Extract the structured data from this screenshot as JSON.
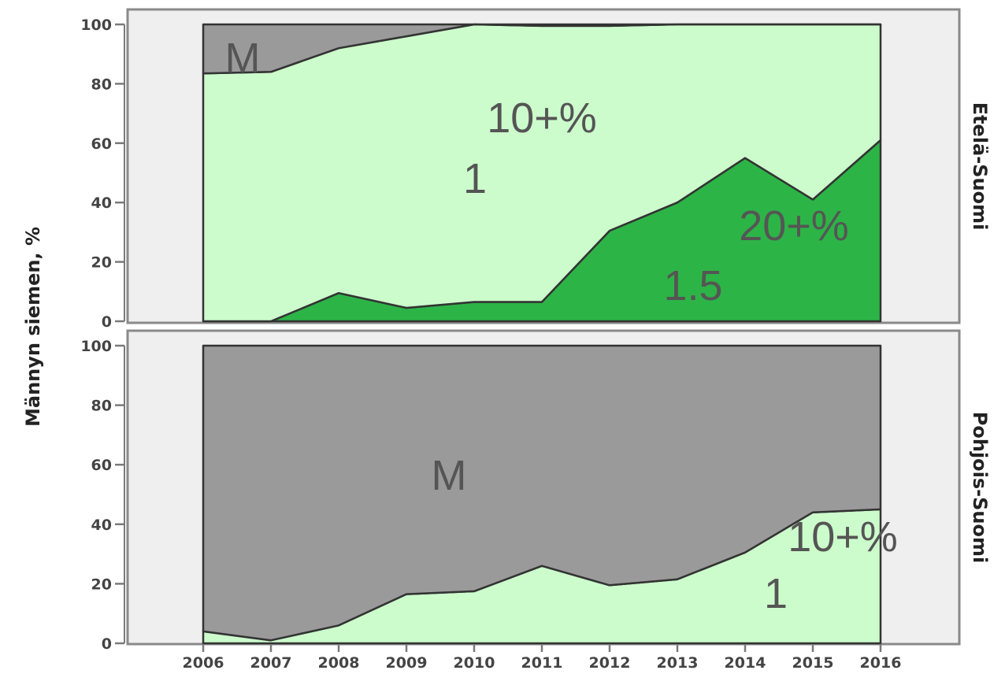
{
  "chart_data": {
    "type": "area",
    "stacked": true,
    "ylabel": "Männyn siemen, %",
    "x": [
      2006,
      2007,
      2008,
      2009,
      2010,
      2011,
      2012,
      2013,
      2014,
      2015,
      2016
    ],
    "ylim": [
      0,
      100
    ],
    "yticks": [
      0,
      20,
      40,
      60,
      80,
      100
    ],
    "colors": {
      "20+%": "#2db447",
      "10+%": "#ccfccc",
      "M": "#9a9a9a",
      "panel": "#efefef"
    },
    "panels": [
      {
        "facet_label": "Etelä-Suomi",
        "series": [
          {
            "name": "20+%",
            "values": [
              0,
              0,
              9.5,
              4.5,
              6.5,
              6.5,
              30.5,
              40,
              55,
              41,
              61
            ]
          },
          {
            "name": "10+%",
            "values": [
              83.5,
              84,
              82.5,
              91.5,
              93.5,
              93,
              69,
              60,
              45,
              59,
              39
            ]
          },
          {
            "name": "M",
            "values": [
              16.5,
              16,
              8,
              4,
              0,
              0.5,
              0.5,
              0,
              0,
              0,
              0
            ]
          }
        ],
        "annotations": [
          {
            "text": "M",
            "series": "M"
          },
          {
            "text": "10+%",
            "series": "10+%"
          },
          {
            "text": "1",
            "series": "10+%"
          },
          {
            "text": "20+%",
            "series": "20+%"
          },
          {
            "text": "1.5",
            "series": "20+%"
          }
        ]
      },
      {
        "facet_label": "Pohjois-Suomi",
        "series": [
          {
            "name": "10+%",
            "values": [
              4,
              1,
              6,
              16.5,
              17.5,
              26,
              19.5,
              21.5,
              30.5,
              44,
              45
            ]
          },
          {
            "name": "M",
            "values": [
              96,
              99,
              94,
              83.5,
              82.5,
              74,
              80.5,
              78.5,
              69.5,
              56,
              55
            ]
          }
        ],
        "annotations": [
          {
            "text": "M",
            "series": "M"
          },
          {
            "text": "10+%",
            "series": "10+%"
          },
          {
            "text": "1",
            "series": "10+%"
          }
        ]
      }
    ]
  }
}
